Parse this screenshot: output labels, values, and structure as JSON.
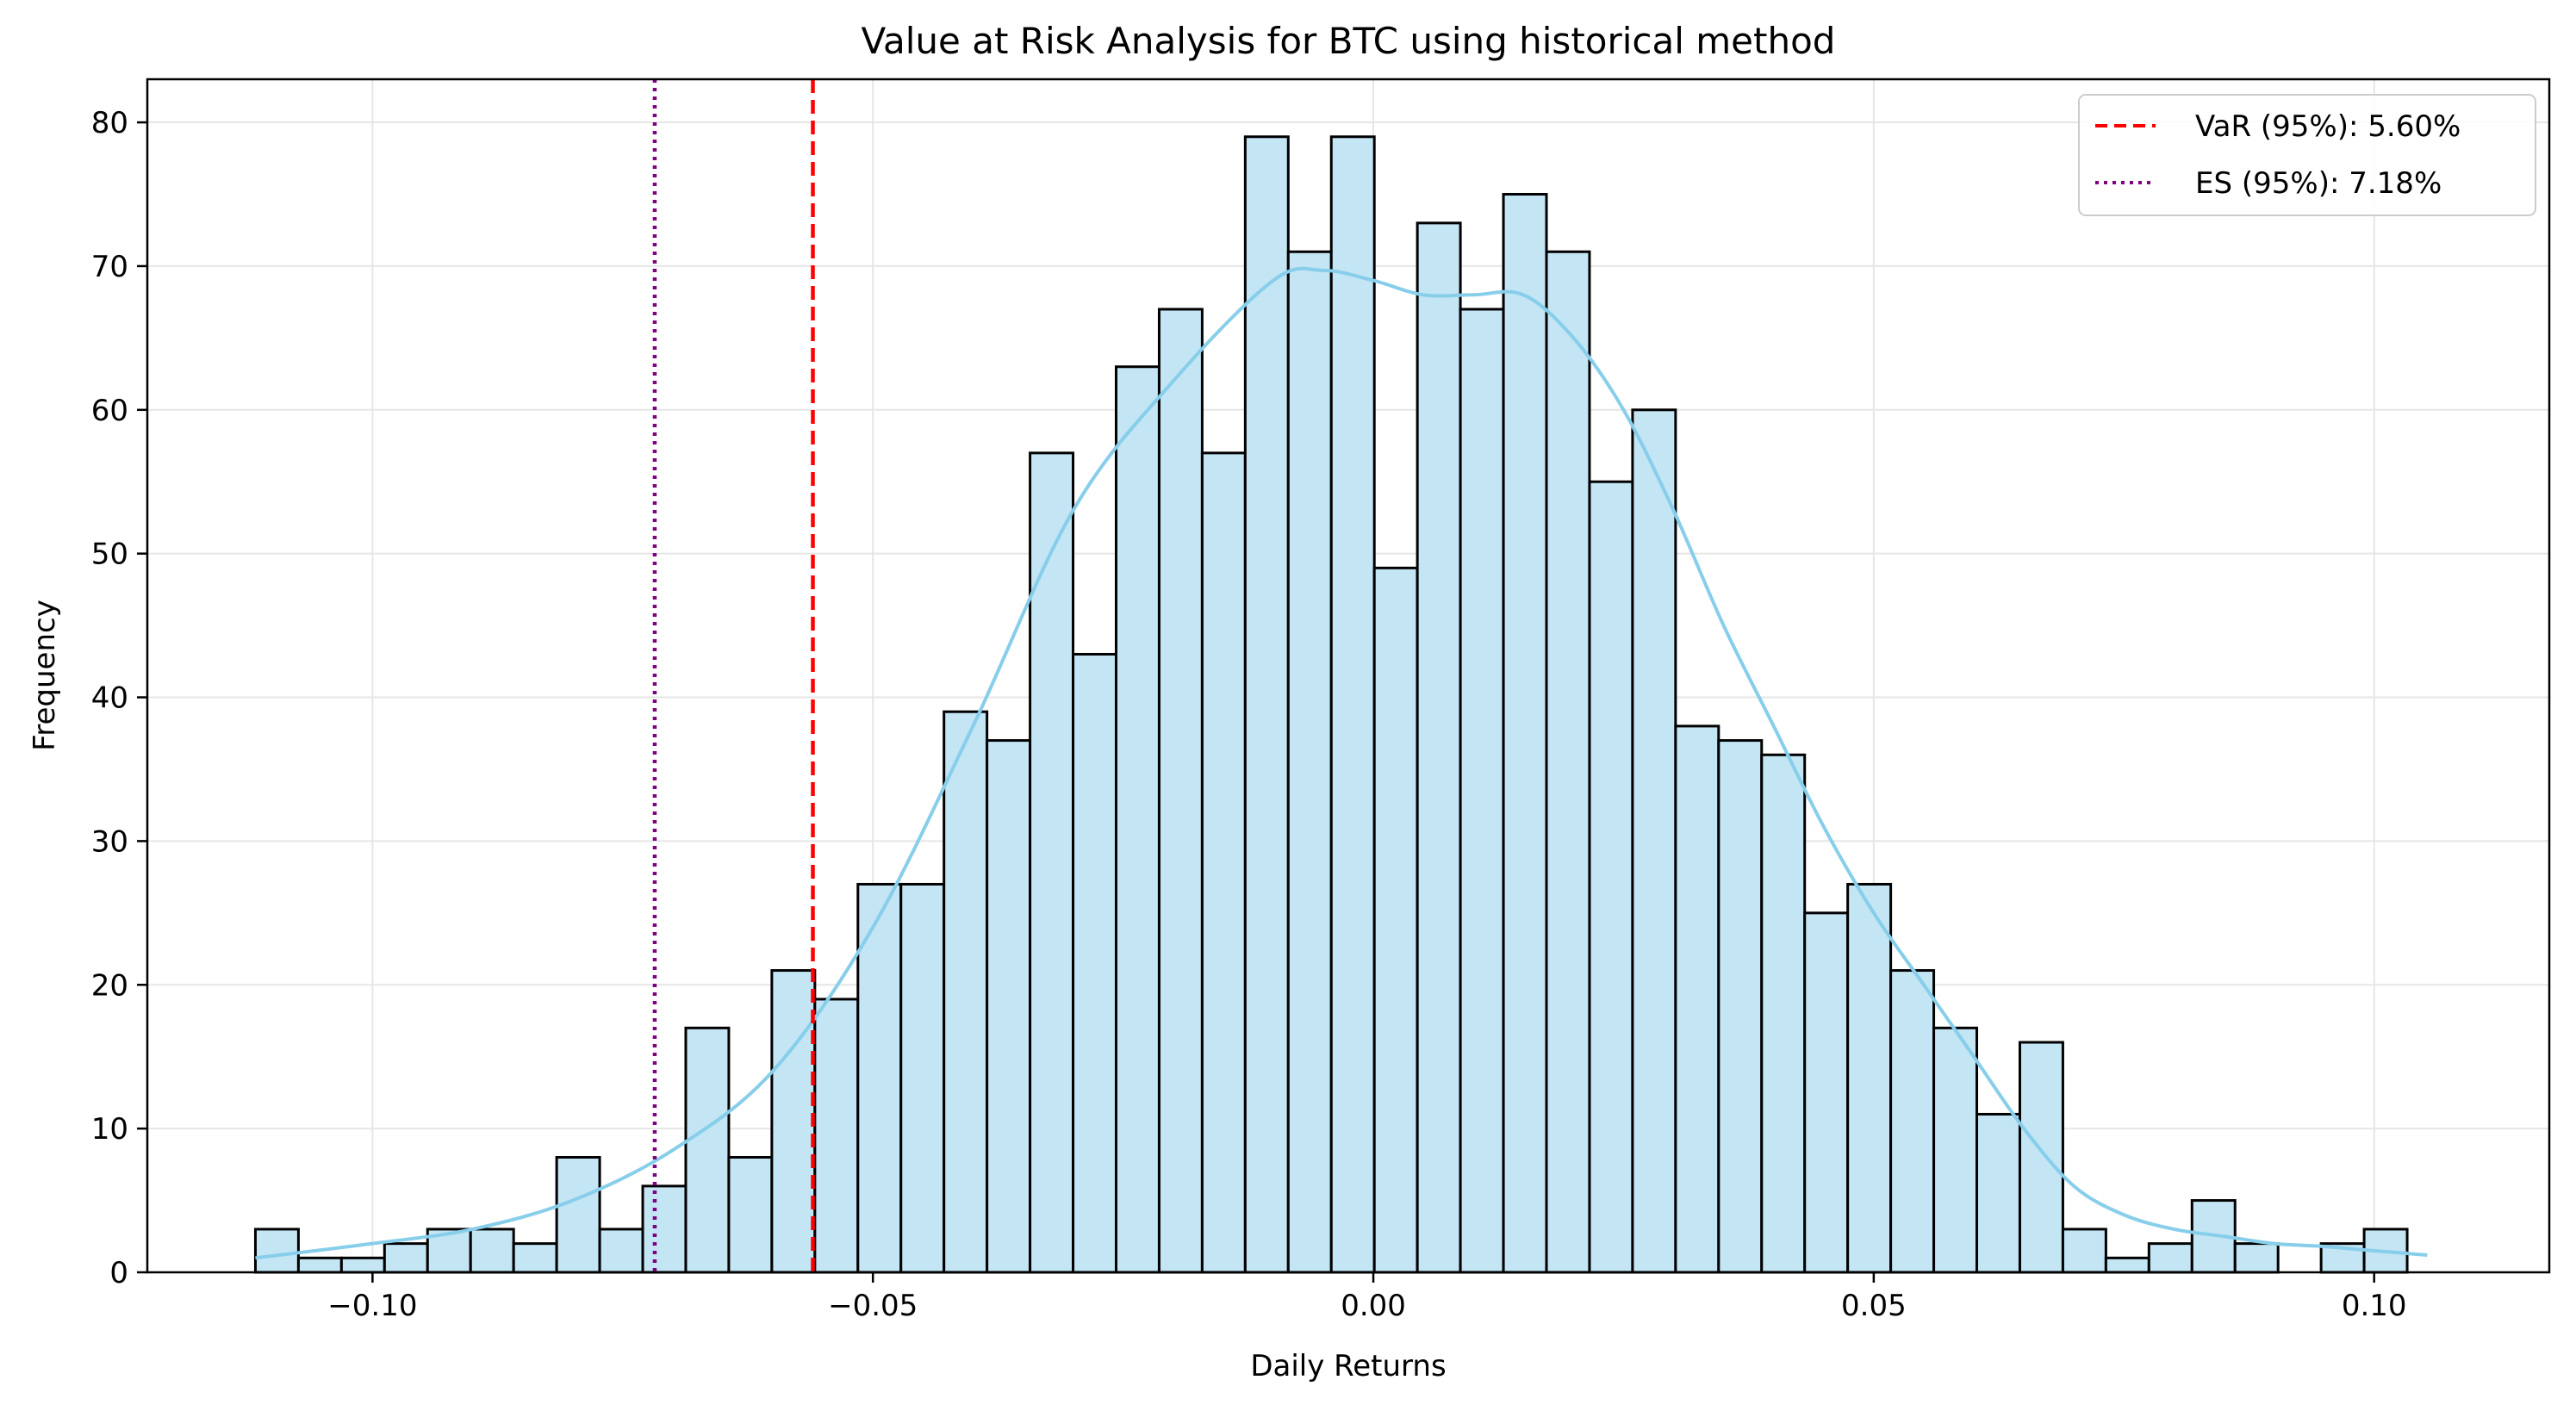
{
  "chart_data": {
    "type": "bar",
    "title": "Value at Risk Analysis for BTC using historical method",
    "xlabel": "Daily Returns",
    "ylabel": "Frequency",
    "xlim": [
      -0.1225,
      0.1175
    ],
    "ylim": [
      0,
      83
    ],
    "grid": true,
    "legend_position": "top-right",
    "colors": {
      "bar_fill": "#c3e5f4",
      "bar_edge": "#000000",
      "kde": "#87ceeb",
      "var_line": "#ff0000",
      "es_line": "#800080",
      "grid": "#e6e6e6"
    },
    "bins": {
      "start": -0.1117,
      "width": 0.0043,
      "counts": [
        3,
        1,
        1,
        2,
        3,
        3,
        2,
        8,
        3,
        6,
        17,
        8,
        21,
        19,
        27,
        27,
        39,
        37,
        57,
        43,
        63,
        67,
        57,
        79,
        71,
        79,
        49,
        73,
        67,
        75,
        71,
        55,
        60,
        38,
        37,
        36,
        25,
        27,
        21,
        17,
        11,
        16,
        3,
        1,
        2,
        5,
        2,
        0,
        2,
        3
      ]
    },
    "kde": {
      "x": [
        -0.1117,
        -0.1,
        -0.09,
        -0.08,
        -0.07,
        -0.06,
        -0.05,
        -0.04,
        -0.03,
        -0.02,
        -0.01,
        -0.005,
        0.0,
        0.005,
        0.01,
        0.015,
        0.02,
        0.025,
        0.03,
        0.035,
        0.04,
        0.045,
        0.05,
        0.055,
        0.06,
        0.065,
        0.07,
        0.075,
        0.08,
        0.085,
        0.09,
        0.095,
        0.1,
        0.1053
      ],
      "y": [
        1,
        2,
        3,
        5,
        8.5,
        14,
        24,
        38,
        53,
        62,
        69,
        69.7,
        69,
        68,
        68,
        68,
        65,
        60,
        53,
        45,
        38,
        31,
        25,
        20,
        15,
        10,
        6,
        4,
        3,
        2.5,
        2,
        1.8,
        1.5,
        1.2
      ]
    },
    "xticks": [
      "−0.10",
      "−0.05",
      "0.00",
      "0.05",
      "0.10"
    ],
    "xtick_values": [
      -0.1,
      -0.05,
      0,
      0.05,
      0.1
    ],
    "yticks": [
      "0",
      "10",
      "20",
      "30",
      "40",
      "50",
      "60",
      "70",
      "80"
    ],
    "ytick_values": [
      0,
      10,
      20,
      30,
      40,
      50,
      60,
      70,
      80
    ],
    "lines": [
      {
        "name": "VaR (95%): 5.60%",
        "x": -0.056,
        "style": "dashed",
        "color": "#ff0000"
      },
      {
        "name": "ES (95%): 7.18%",
        "x": -0.0718,
        "style": "dotted",
        "color": "#800080"
      }
    ]
  }
}
